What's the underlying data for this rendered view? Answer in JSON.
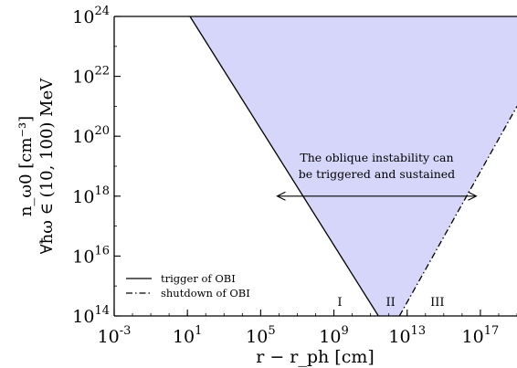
{
  "chart_data": {
    "type": "area",
    "title": "",
    "xlabel": "r − r_ph [cm]",
    "ylabel_line1": "n_ω0 [cm⁻³]",
    "ylabel_line2": "∀ħω ∈ (10, 100) MeV",
    "x_scale": "log",
    "y_scale": "log",
    "xlim": [
      0.001,
      1e+19
    ],
    "ylim": [
      100000000000000.0,
      1e+24
    ],
    "x_ticks": [
      {
        "value": 0.001,
        "base": "10",
        "exp": "-3"
      },
      {
        "value": 10,
        "base": "10",
        "exp": "1"
      },
      {
        "value": 100000,
        "base": "10",
        "exp": "5"
      },
      {
        "value": 1000000000,
        "base": "10",
        "exp": "9"
      },
      {
        "value": 10000000000000.0,
        "base": "10",
        "exp": "13"
      },
      {
        "value": 1e+17,
        "base": "10",
        "exp": "17"
      }
    ],
    "y_ticks": [
      {
        "value": 100000000000000.0,
        "base": "10",
        "exp": "14"
      },
      {
        "value": 1e+16,
        "base": "10",
        "exp": "16"
      },
      {
        "value": 1e+18,
        "base": "10",
        "exp": "18"
      },
      {
        "value": 1e+20,
        "base": "10",
        "exp": "20"
      },
      {
        "value": 1e+22,
        "base": "10",
        "exp": "22"
      },
      {
        "value": 1e+24,
        "base": "10",
        "exp": "24"
      }
    ],
    "series": [
      {
        "name": "trigger of OBI",
        "style": "solid",
        "points": [
          [
            13.8,
            1e+24
          ],
          [
            270000000000.0,
            100000000000000.0
          ]
        ]
      },
      {
        "name": "shutdown of OBI",
        "style": "dashdot",
        "points": [
          [
            3800000000000.0,
            100000000000000.0
          ],
          [
            1e+19,
            1e+21
          ]
        ]
      }
    ],
    "shaded_region": {
      "color": "#d6d6fb",
      "points": [
        [
          13.8,
          1e+24
        ],
        [
          1e+19,
          1e+24
        ],
        [
          1e+19,
          1e+21
        ],
        [
          3800000000000.0,
          100000000000000.0
        ],
        [
          270000000000.0,
          100000000000000.0
        ]
      ]
    },
    "annotation": {
      "line1": "The oblique instability can",
      "line2": "be triggered and sustained",
      "arrow_from": [
        800000.0,
        1e+18
      ],
      "arrow_to": [
        6e+16,
        1e+18
      ]
    },
    "region_labels": [
      {
        "text": "I",
        "x": 2100000000.0,
        "y": 310000000000000.0
      },
      {
        "text": "II",
        "x": 1250000000000.0,
        "y": 310000000000000.0
      },
      {
        "text": "III",
        "x": 450000000000000.0,
        "y": 310000000000000.0
      }
    ],
    "legend": {
      "placement": "bottom-left"
    },
    "grid": false
  }
}
